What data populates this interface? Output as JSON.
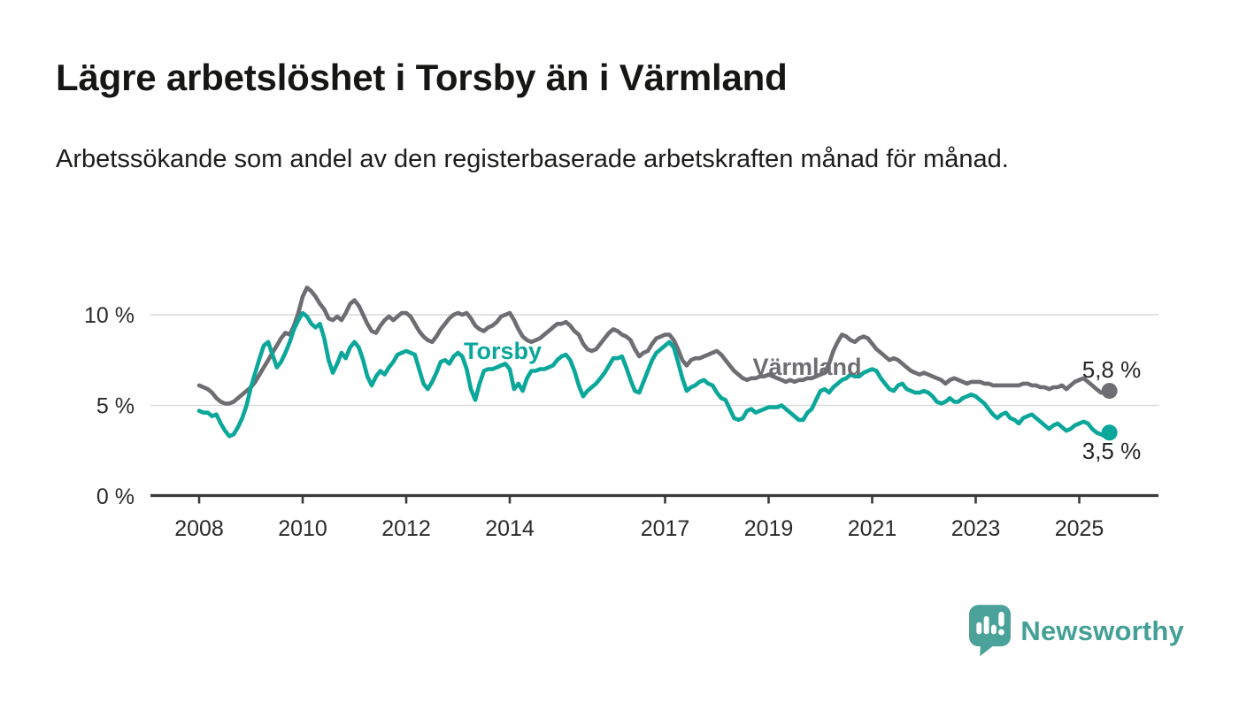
{
  "header": {
    "title": "Lägre arbetslöshet i Torsby än i Värmland",
    "subtitle": "Arbetssökande som andel av den registerbaserade arbetskraften månad för månad."
  },
  "chart_data": {
    "type": "line",
    "unit": "%",
    "x_start_year": 2008,
    "x_step_months": 1,
    "x_end_label_period": "2025-08",
    "xlim": [
      2007.05,
      2026.55
    ],
    "ylim": [
      0,
      12.2
    ],
    "grid": "horizontal",
    "legend_position": "inline-labels",
    "x_ticks": [
      2008,
      2010,
      2012,
      2014,
      2017,
      2019,
      2021,
      2023,
      2025
    ],
    "y_ticks": [
      {
        "value": 0,
        "label": "0 %"
      },
      {
        "value": 5,
        "label": "5 %"
      },
      {
        "value": 10,
        "label": "10 %"
      }
    ],
    "series": [
      {
        "name": "Torsby",
        "color": "#0ba79a",
        "end_value": 3.5,
        "end_label": "3,5 %",
        "values": [
          4.7,
          4.6,
          4.6,
          4.4,
          4.5,
          4.0,
          3.6,
          3.3,
          3.4,
          3.8,
          4.3,
          5.0,
          6.0,
          6.8,
          7.6,
          8.3,
          8.5,
          7.8,
          7.1,
          7.4,
          7.9,
          8.5,
          9.2,
          9.7,
          10.1,
          9.9,
          9.5,
          9.3,
          9.5,
          8.7,
          7.5,
          6.8,
          7.3,
          7.9,
          7.6,
          8.2,
          8.5,
          8.2,
          7.5,
          6.6,
          6.1,
          6.6,
          6.9,
          6.7,
          7.1,
          7.4,
          7.8,
          7.9,
          8.0,
          7.9,
          7.8,
          7.0,
          6.2,
          5.9,
          6.3,
          6.8,
          7.4,
          7.5,
          7.3,
          7.7,
          7.9,
          7.7,
          7.0,
          5.9,
          5.3,
          6.2,
          6.9,
          7.0,
          7.0,
          7.1,
          7.2,
          7.3,
          7.0,
          5.9,
          6.2,
          5.8,
          6.5,
          6.9,
          6.9,
          7.0,
          7.0,
          7.1,
          7.2,
          7.5,
          7.7,
          7.8,
          7.5,
          6.9,
          6.1,
          5.5,
          5.8,
          6.0,
          6.2,
          6.5,
          6.8,
          7.2,
          7.6,
          7.6,
          7.7,
          7.1,
          6.4,
          5.8,
          5.7,
          6.3,
          6.9,
          7.5,
          7.9,
          8.1,
          8.3,
          8.5,
          8.2,
          7.4,
          6.5,
          5.8,
          6.0,
          6.1,
          6.3,
          6.4,
          6.2,
          6.1,
          5.7,
          5.4,
          5.3,
          4.8,
          4.3,
          4.2,
          4.3,
          4.7,
          4.8,
          4.6,
          4.7,
          4.8,
          4.9,
          4.9,
          4.9,
          5.0,
          4.8,
          4.6,
          4.4,
          4.2,
          4.2,
          4.6,
          4.8,
          5.3,
          5.8,
          5.9,
          5.7,
          6.0,
          6.2,
          6.4,
          6.5,
          6.7,
          6.6,
          6.6,
          6.8,
          6.9,
          7.0,
          6.9,
          6.5,
          6.2,
          5.9,
          5.8,
          6.1,
          6.2,
          5.9,
          5.8,
          5.7,
          5.7,
          5.8,
          5.7,
          5.5,
          5.2,
          5.1,
          5.2,
          5.4,
          5.2,
          5.2,
          5.4,
          5.5,
          5.6,
          5.5,
          5.3,
          5.1,
          4.8,
          4.5,
          4.3,
          4.5,
          4.6,
          4.3,
          4.2,
          4.0,
          4.3,
          4.4,
          4.5,
          4.3,
          4.1,
          3.9,
          3.7,
          3.9,
          4.0,
          3.8,
          3.6,
          3.7,
          3.9,
          4.0,
          4.1,
          4.0,
          3.7,
          3.5,
          3.4,
          3.3,
          3.5
        ]
      },
      {
        "name": "Värmland",
        "color": "#6d6d72",
        "end_value": 5.8,
        "end_label": "5,8 %",
        "values": [
          6.1,
          6.0,
          5.9,
          5.7,
          5.4,
          5.2,
          5.1,
          5.1,
          5.2,
          5.4,
          5.6,
          5.8,
          6.0,
          6.3,
          6.7,
          7.1,
          7.5,
          7.9,
          8.3,
          8.7,
          9.0,
          8.9,
          9.4,
          10.1,
          11.0,
          11.5,
          11.3,
          11.0,
          10.6,
          10.3,
          9.8,
          9.7,
          9.9,
          9.7,
          10.1,
          10.6,
          10.8,
          10.5,
          10.0,
          9.5,
          9.1,
          9.0,
          9.4,
          9.7,
          9.9,
          9.7,
          9.9,
          10.1,
          10.1,
          9.9,
          9.5,
          9.1,
          8.8,
          8.6,
          8.5,
          8.8,
          9.2,
          9.5,
          9.8,
          10.0,
          10.1,
          10.0,
          10.1,
          9.8,
          9.4,
          9.2,
          9.1,
          9.3,
          9.4,
          9.6,
          9.9,
          10.0,
          10.1,
          9.7,
          9.2,
          8.8,
          8.6,
          8.5,
          8.6,
          8.7,
          8.9,
          9.1,
          9.3,
          9.5,
          9.5,
          9.6,
          9.4,
          9.1,
          8.9,
          8.4,
          8.1,
          8.0,
          8.1,
          8.4,
          8.7,
          9.0,
          9.2,
          9.1,
          8.9,
          8.8,
          8.6,
          8.1,
          7.7,
          7.9,
          8.0,
          8.4,
          8.7,
          8.8,
          8.9,
          8.9,
          8.6,
          8.1,
          7.5,
          7.2,
          7.5,
          7.6,
          7.6,
          7.7,
          7.8,
          7.9,
          8.0,
          7.8,
          7.5,
          7.2,
          6.9,
          6.7,
          6.5,
          6.4,
          6.5,
          6.5,
          6.6,
          6.6,
          6.7,
          6.6,
          6.5,
          6.4,
          6.3,
          6.4,
          6.3,
          6.4,
          6.4,
          6.5,
          6.5,
          6.6,
          6.7,
          6.8,
          7.3,
          8.0,
          8.5,
          8.9,
          8.8,
          8.6,
          8.5,
          8.7,
          8.8,
          8.7,
          8.4,
          8.1,
          7.9,
          7.7,
          7.5,
          7.6,
          7.5,
          7.3,
          7.1,
          6.9,
          6.8,
          6.7,
          6.8,
          6.7,
          6.6,
          6.5,
          6.4,
          6.2,
          6.4,
          6.5,
          6.4,
          6.3,
          6.2,
          6.3,
          6.3,
          6.3,
          6.2,
          6.2,
          6.1,
          6.1,
          6.1,
          6.1,
          6.1,
          6.1,
          6.1,
          6.2,
          6.2,
          6.1,
          6.1,
          6.0,
          6.0,
          5.9,
          6.0,
          6.0,
          6.1,
          5.9,
          6.1,
          6.3,
          6.4,
          6.5,
          6.3,
          6.1,
          5.9,
          5.7,
          5.7,
          5.8
        ]
      }
    ]
  },
  "branding": {
    "name": "Newsworthy",
    "color": "#44a097",
    "logo": "bar-chart-speech-bubble-icon"
  }
}
